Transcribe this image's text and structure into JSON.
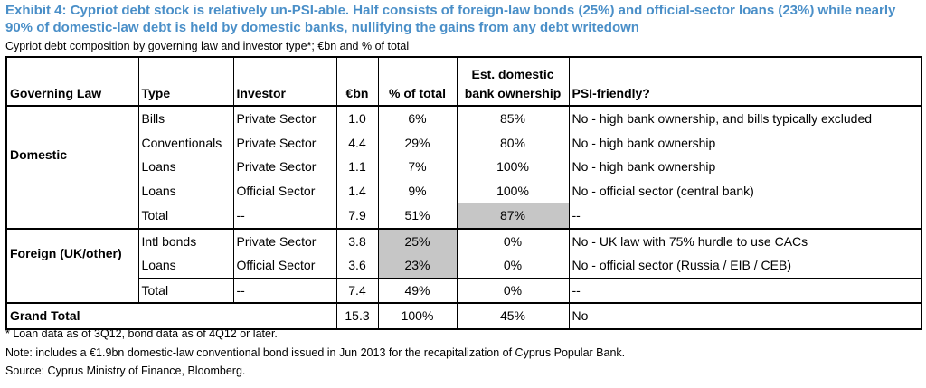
{
  "title_line1": "Exhibit 4: Cypriot debt stock is relatively un-PSI-able.  Half consists of foreign-law bonds (25%) and official-sector loans (23%) while nearly",
  "title_line2": "90% of domestic-law debt is held by domestic banks, nullifying the gains from any debt writedown",
  "subtitle": "Cypriot debt composition by governing law and investor type*; €bn and % of total",
  "headers": {
    "governing_law": "Governing Law",
    "type": "Type",
    "investor": "Investor",
    "ebn": "€bn",
    "pct_total": "% of total",
    "bank_own_line1": "Est. domestic",
    "bank_own_line2": "bank ownership",
    "psi": "PSI-friendly?"
  },
  "domestic": {
    "label": "Domestic",
    "rows": [
      {
        "type": "Bills",
        "investor": "Private Sector",
        "ebn": "1.0",
        "pct": "6%",
        "bank": "85%",
        "psi": "No - high bank ownership, and bills typically excluded"
      },
      {
        "type": "Conventionals",
        "investor": "Private Sector",
        "ebn": "4.4",
        "pct": "29%",
        "bank": "80%",
        "psi": "No - high bank ownership"
      },
      {
        "type": "Loans",
        "investor": "Private Sector",
        "ebn": "1.1",
        "pct": "7%",
        "bank": "100%",
        "psi": "No - high bank ownership"
      },
      {
        "type": "Loans",
        "investor": "Official Sector",
        "ebn": "1.4",
        "pct": "9%",
        "bank": "100%",
        "psi": "No - official sector (central bank)"
      }
    ],
    "total": {
      "type": "Total",
      "investor": "--",
      "ebn": "7.9",
      "pct": "51%",
      "bank": "87%",
      "psi": "--"
    }
  },
  "foreign": {
    "label": "Foreign (UK/other)",
    "rows": [
      {
        "type": "Intl bonds",
        "investor": "Private Sector",
        "ebn": "3.8",
        "pct": "25%",
        "bank": "0%",
        "psi": "No - UK law with 75% hurdle to use CACs"
      },
      {
        "type": "Loans",
        "investor": "Official Sector",
        "ebn": "3.6",
        "pct": "23%",
        "bank": "0%",
        "psi": "No - official sector (Russia / EIB / CEB)"
      }
    ],
    "total": {
      "type": "Total",
      "investor": "--",
      "ebn": "7.4",
      "pct": "49%",
      "bank": "0%",
      "psi": "--"
    }
  },
  "grand_total": {
    "label": "Grand Total",
    "ebn": "15.3",
    "pct": "100%",
    "bank": "45%",
    "psi": "No"
  },
  "footnotes": {
    "loan_data": "* Loan data as of 3Q12, bond data as of 4Q12 or later.",
    "note": "Note: includes a €1.9bn domestic-law conventional bond issued in Jun 2013 for the recapitalization of Cyprus Popular Bank.",
    "source": "Source: Cyprus Ministry of Finance, Bloomberg."
  },
  "colors": {
    "title": "#4a8fc8",
    "highlight": "#c6c6c6"
  }
}
